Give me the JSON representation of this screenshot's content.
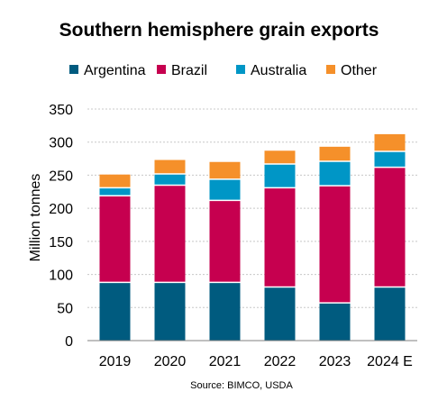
{
  "chart_data": {
    "type": "bar",
    "stacked": true,
    "title": "Southern hemisphere grain exports",
    "ylabel": "Million tonnes",
    "xlabel": "",
    "source": "Source: BIMCO, USDA",
    "categories": [
      "2019",
      "2020",
      "2021",
      "2022",
      "2023",
      "2024 E"
    ],
    "ylim": [
      0,
      350
    ],
    "yticks": [
      0,
      50,
      100,
      150,
      200,
      250,
      300,
      350
    ],
    "grid": true,
    "legend_position": "top",
    "series": [
      {
        "name": "Argentina",
        "color": "#005b7f",
        "values": [
          88,
          88,
          88,
          81,
          57,
          81
        ]
      },
      {
        "name": "Brazil",
        "color": "#c6004f",
        "values": [
          131,
          147,
          124,
          150,
          177,
          181
        ]
      },
      {
        "name": "Australia",
        "color": "#0096c6",
        "values": [
          12,
          17,
          32,
          36,
          37,
          24
        ]
      },
      {
        "name": "Other",
        "color": "#f5902a",
        "values": [
          20,
          21,
          26,
          20,
          22,
          26
        ]
      }
    ]
  }
}
